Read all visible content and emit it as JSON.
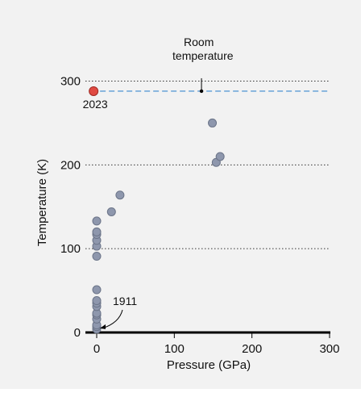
{
  "chart_data": {
    "type": "scatter",
    "xlabel": "Pressure (GPa)",
    "ylabel": "Temperature (K)",
    "xlim": [
      -12,
      300
    ],
    "ylim": [
      0,
      320
    ],
    "x_ticks": [
      0,
      100,
      200,
      300
    ],
    "y_ticks": [
      0,
      100,
      200,
      300
    ],
    "grid": "dotted horizontal at 100, 200, 300",
    "points": [
      {
        "x": 0,
        "y": 4
      },
      {
        "x": 0,
        "y": 7
      },
      {
        "x": 0,
        "y": 9
      },
      {
        "x": 0,
        "y": 16
      },
      {
        "x": 0,
        "y": 21
      },
      {
        "x": 0,
        "y": 23
      },
      {
        "x": 0,
        "y": 31
      },
      {
        "x": 0,
        "y": 35
      },
      {
        "x": 0,
        "y": 38
      },
      {
        "x": 0,
        "y": 51
      },
      {
        "x": 0,
        "y": 91
      },
      {
        "x": 0,
        "y": 103
      },
      {
        "x": 0,
        "y": 110
      },
      {
        "x": 0,
        "y": 117
      },
      {
        "x": 0,
        "y": 120
      },
      {
        "x": 0,
        "y": 133
      },
      {
        "x": 19,
        "y": 144
      },
      {
        "x": 30,
        "y": 164
      },
      {
        "x": 149,
        "y": 250
      },
      {
        "x": 154,
        "y": 203
      },
      {
        "x": 159,
        "y": 210
      }
    ],
    "highlight": {
      "x": -4,
      "y": 288,
      "label": "2023",
      "color": "#e04a42"
    },
    "reference_line": {
      "y": 288,
      "label": "Room temperature",
      "color": "#5b9bd5",
      "style": "dashed",
      "marker_x": 135
    },
    "annotation": {
      "label": "1911",
      "x": 0,
      "y": 4
    },
    "point_color": "#8e97ad",
    "point_stroke": "#6b7488"
  }
}
